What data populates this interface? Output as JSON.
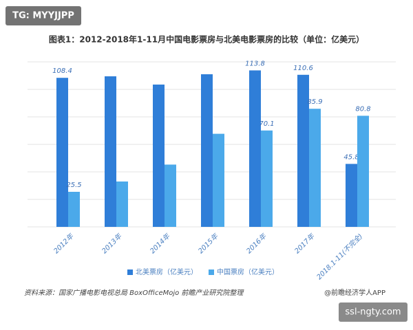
{
  "watermark": "TG: MYYJJPP",
  "site_badge": "ssl-ngty.com",
  "source": "资料来源：国家广播电影电视总局 BoxOfficeMojo   前瞻产业研究院整理",
  "credit": "@前瞻经济学人APP",
  "chart_data": {
    "type": "bar",
    "title": "图表1：2012-2018年1-11月中国电影票房与北美电影票房的比较（单位：亿美元）",
    "categories": [
      "2012年",
      "2013年",
      "2014年",
      "2015年",
      "2016年",
      "2017年",
      "2018.1-11(不完全)"
    ],
    "series": [
      {
        "name": "北美票房（亿美元）",
        "color": "#2f7ed8",
        "values": [
          108.4,
          109.5,
          103.5,
          111,
          113.8,
          110.6,
          45.8
        ],
        "value_labels": [
          "108.4",
          null,
          null,
          null,
          "113.8",
          "110.6",
          "45.8"
        ]
      },
      {
        "name": "中国票房（亿美元）",
        "color": "#4ba9ea",
        "values": [
          25.5,
          33,
          45.3,
          67.7,
          70.1,
          85.9,
          80.8
        ],
        "value_labels": [
          "25.5",
          null,
          null,
          null,
          "70.1",
          "85.9",
          "80.8"
        ]
      }
    ],
    "ylim": [
      0,
      120
    ],
    "yticks": [
      0,
      20,
      40,
      60,
      80,
      100,
      120
    ],
    "grid": true,
    "ytick_labels": false,
    "legend": "bottom"
  }
}
